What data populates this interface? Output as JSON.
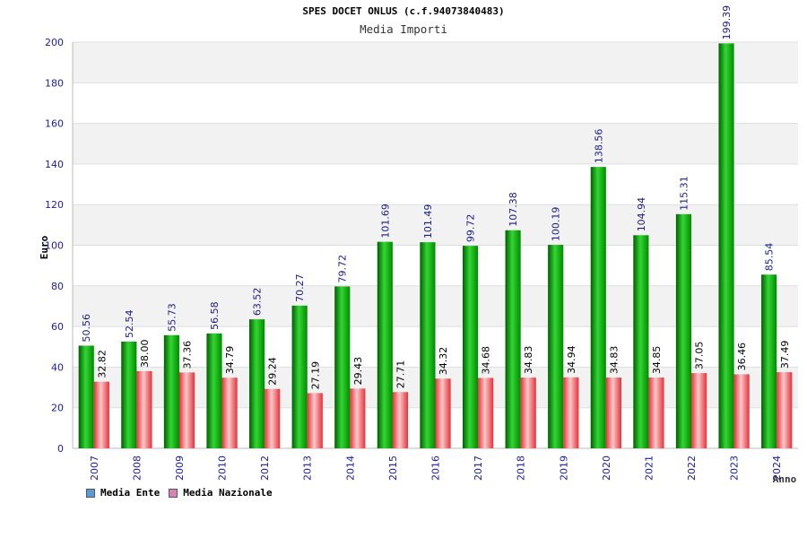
{
  "chart_data": {
    "type": "bar",
    "title": "SPES DOCET ONLUS (c.f.94073840483)",
    "subtitle": "Media Importi",
    "ylabel": "Euro",
    "xlabel": "Anno",
    "ylim": [
      0,
      200
    ],
    "yticks": [
      0,
      20,
      40,
      60,
      80,
      100,
      120,
      140,
      160,
      180,
      200
    ],
    "categories": [
      "2007",
      "2008",
      "2009",
      "2010",
      "2012",
      "2013",
      "2014",
      "2015",
      "2016",
      "2017",
      "2018",
      "2019",
      "2020",
      "2021",
      "2022",
      "2023",
      "2024"
    ],
    "series": [
      {
        "name": "Media Ente",
        "color": "#00b000",
        "legend_color": "#5b9bd5",
        "values": [
          50.56,
          52.54,
          55.73,
          56.58,
          63.52,
          70.27,
          79.72,
          101.69,
          101.49,
          99.72,
          107.38,
          100.19,
          138.56,
          104.94,
          115.31,
          199.39,
          85.54
        ],
        "labels": [
          "50.56",
          "52.54",
          "55.73",
          "56.58",
          "63.52",
          "70.27",
          "79.72",
          "101.69",
          "101.49",
          "99.72",
          "107.38",
          "100.19",
          "138.56",
          "104.94",
          "115.31",
          "199.39",
          "85.54"
        ]
      },
      {
        "name": "Media Nazionale",
        "color": "#e0303a",
        "legend_color": "#d982b5",
        "values": [
          32.82,
          38.0,
          37.36,
          34.79,
          29.24,
          27.19,
          29.43,
          27.71,
          34.32,
          34.68,
          34.83,
          34.94,
          34.83,
          34.85,
          37.05,
          36.46,
          37.49
        ],
        "labels": [
          "32.82",
          "38.00",
          "37.36",
          "34.79",
          "29.24",
          "27.19",
          "29.43",
          "27.71",
          "34.32",
          "34.68",
          "34.83",
          "34.94",
          "34.83",
          "34.85",
          "37.05",
          "36.46",
          "37.49"
        ]
      }
    ],
    "grid": true,
    "legend_position": "bottom-left"
  }
}
